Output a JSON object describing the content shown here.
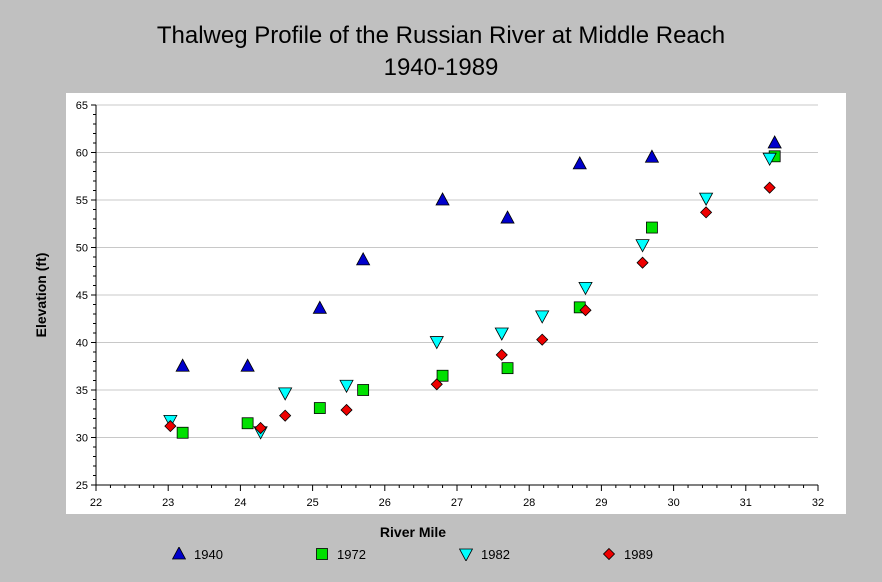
{
  "chart_data": {
    "type": "scatter",
    "title": "Thalweg Profile of the Russian River at Middle Reach",
    "subtitle": "1940-1989",
    "xlabel": "River Mile",
    "ylabel": "Elevation (ft)",
    "xlim": [
      22,
      32
    ],
    "ylim": [
      25,
      65
    ],
    "xticks": [
      "22",
      "23",
      "24",
      "25",
      "26",
      "27",
      "28",
      "29",
      "30",
      "31",
      "32"
    ],
    "yticks": [
      "25",
      "30",
      "35",
      "40",
      "45",
      "50",
      "55",
      "60",
      "65"
    ],
    "grid": "horizontal",
    "legend_position": "bottom",
    "series": [
      {
        "name": "1940",
        "marker": "triangle-up",
        "color": "#0000cc",
        "points": [
          [
            23.2,
            37.5
          ],
          [
            24.1,
            37.5
          ],
          [
            25.1,
            43.6
          ],
          [
            25.7,
            48.7
          ],
          [
            26.8,
            55.0
          ],
          [
            27.7,
            53.1
          ],
          [
            28.7,
            58.8
          ],
          [
            29.7,
            59.5
          ],
          [
            31.4,
            61.0
          ]
        ]
      },
      {
        "name": "1972",
        "marker": "square",
        "color": "#00e000",
        "points": [
          [
            23.2,
            30.5
          ],
          [
            24.1,
            31.5
          ],
          [
            25.1,
            33.1
          ],
          [
            25.7,
            35.0
          ],
          [
            26.8,
            36.5
          ],
          [
            27.7,
            37.3
          ],
          [
            28.7,
            43.7
          ],
          [
            29.7,
            52.1
          ],
          [
            31.4,
            59.6
          ]
        ]
      },
      {
        "name": "1982",
        "marker": "triangle-down",
        "color": "#00ffff",
        "points": [
          [
            23.03,
            31.8
          ],
          [
            24.28,
            30.6
          ],
          [
            24.62,
            34.7
          ],
          [
            25.47,
            35.5
          ],
          [
            26.72,
            40.1
          ],
          [
            27.62,
            41.0
          ],
          [
            28.18,
            42.8
          ],
          [
            28.78,
            45.8
          ],
          [
            29.57,
            50.3
          ],
          [
            30.45,
            55.2
          ],
          [
            31.33,
            59.4
          ]
        ]
      },
      {
        "name": "1989",
        "marker": "diamond",
        "color": "#ee0000",
        "points": [
          [
            23.03,
            31.2
          ],
          [
            24.28,
            31.0
          ],
          [
            24.62,
            32.3
          ],
          [
            25.47,
            32.9
          ],
          [
            26.72,
            35.6
          ],
          [
            27.62,
            38.7
          ],
          [
            28.18,
            40.3
          ],
          [
            28.78,
            43.4
          ],
          [
            29.57,
            48.4
          ],
          [
            30.45,
            53.7
          ],
          [
            31.33,
            56.3
          ]
        ]
      }
    ]
  }
}
